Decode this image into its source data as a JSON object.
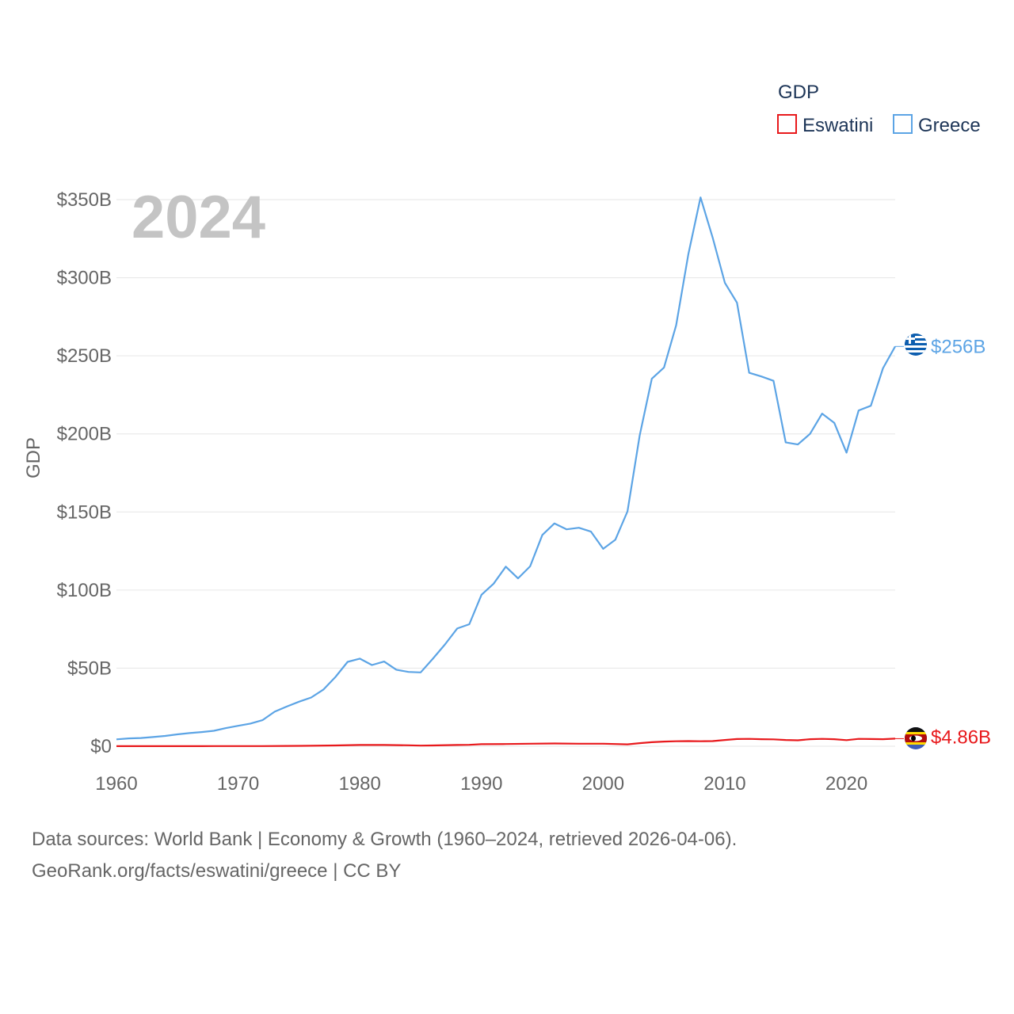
{
  "chart_data": {
    "type": "line",
    "title": "GDP",
    "ylabel": "GDP",
    "xlabel": "",
    "year_label": "2024",
    "xlim": [
      1960,
      2024
    ],
    "ylim": [
      0,
      350
    ],
    "x_ticks": [
      "1960",
      "1970",
      "1980",
      "1990",
      "2000",
      "2010",
      "2020"
    ],
    "y_ticks": [
      "$0",
      "$50B",
      "$100B",
      "$150B",
      "$200B",
      "$250B",
      "$300B",
      "$350B"
    ],
    "y_tick_values": [
      0,
      50,
      100,
      150,
      200,
      250,
      300,
      350
    ],
    "legend": {
      "title": "GDP",
      "position": "top-right"
    },
    "units": "billion USD",
    "series": [
      {
        "name": "Eswatini",
        "color": "#e8191c",
        "flag_icon": "eswatini-flag-icon",
        "end_label": "$4.86B",
        "x": [
          1960,
          1962,
          1964,
          1966,
          1968,
          1970,
          1972,
          1974,
          1976,
          1978,
          1980,
          1982,
          1984,
          1985,
          1986,
          1988,
          1989,
          1990,
          1992,
          1994,
          1996,
          1998,
          2000,
          2002,
          2003,
          2004,
          2005,
          2006,
          2007,
          2008,
          2009,
          2010,
          2011,
          2012,
          2013,
          2014,
          2015,
          2016,
          2017,
          2018,
          2019,
          2020,
          2021,
          2022,
          2023,
          2024
        ],
        "values": [
          0.03,
          0.04,
          0.05,
          0.07,
          0.08,
          0.1,
          0.12,
          0.2,
          0.3,
          0.5,
          0.8,
          0.8,
          0.6,
          0.4,
          0.5,
          0.8,
          0.9,
          1.3,
          1.4,
          1.6,
          1.8,
          1.6,
          1.6,
          1.2,
          2.0,
          2.6,
          3.0,
          3.2,
          3.3,
          3.2,
          3.3,
          4.0,
          4.6,
          4.7,
          4.5,
          4.4,
          4.0,
          3.8,
          4.5,
          4.7,
          4.5,
          3.9,
          4.7,
          4.6,
          4.5,
          4.86
        ]
      },
      {
        "name": "Greece",
        "color": "#5ca4e5",
        "flag_icon": "greece-flag-icon",
        "end_label": "$256B",
        "x": [
          1960,
          1961,
          1962,
          1963,
          1964,
          1965,
          1966,
          1967,
          1968,
          1969,
          1970,
          1971,
          1972,
          1973,
          1974,
          1975,
          1976,
          1977,
          1978,
          1979,
          1980,
          1981,
          1982,
          1983,
          1984,
          1985,
          1986,
          1987,
          1988,
          1989,
          1990,
          1991,
          1992,
          1993,
          1994,
          1995,
          1996,
          1997,
          1998,
          1999,
          2000,
          2001,
          2002,
          2003,
          2004,
          2005,
          2006,
          2007,
          2008,
          2009,
          2010,
          2011,
          2012,
          2013,
          2014,
          2015,
          2016,
          2017,
          2018,
          2019,
          2020,
          2021,
          2022,
          2023,
          2024
        ],
        "values": [
          4.4,
          5.0,
          5.3,
          5.9,
          6.6,
          7.6,
          8.4,
          9.1,
          9.9,
          11.6,
          13.1,
          14.5,
          16.7,
          22.1,
          25.4,
          28.5,
          31.2,
          36.2,
          44.4,
          54.0,
          56.1,
          52.0,
          54.2,
          49.0,
          47.6,
          47.3,
          56.0,
          65.2,
          75.4,
          78.1,
          97.0,
          104.1,
          115.0,
          107.5,
          115.2,
          135.3,
          142.7,
          138.9,
          139.9,
          137.4,
          126.4,
          132.2,
          150.4,
          199.0,
          235.3,
          242.5,
          269.5,
          315.0,
          351.4,
          325.7,
          296.8,
          284.0,
          239.1,
          236.8,
          234.0,
          194.6,
          193.2,
          200.0,
          213.0,
          207.0,
          188.0,
          215.0,
          218.0,
          242.0,
          256.0
        ]
      }
    ]
  },
  "footer": {
    "line1": "Data sources: World Bank | Economy & Growth (1960–2024, retrieved 2026-04-06).",
    "line2": "GeoRank.org/facts/eswatini/greece | CC BY"
  }
}
